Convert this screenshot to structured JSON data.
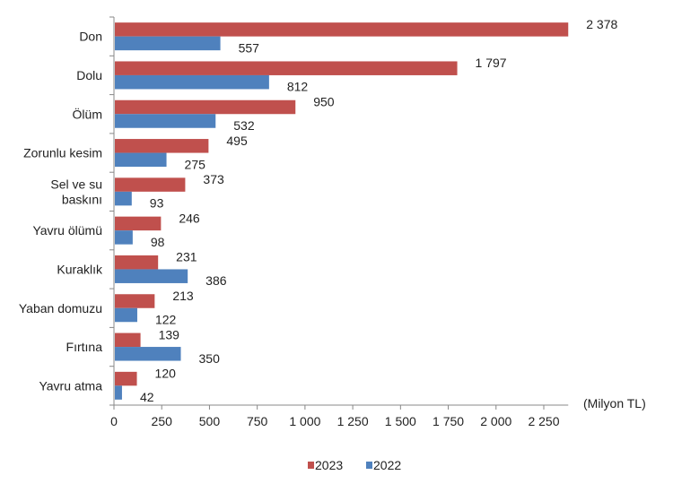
{
  "chart_data": {
    "type": "bar",
    "orientation": "horizontal",
    "categories": [
      "Don",
      "Dolu",
      "Ölüm",
      "Zorunlu kesim",
      "Sel ve su baskını",
      "Yavru ölümü",
      "Kuraklık",
      "Yaban domuzu",
      "Fırtına",
      "Yavru atma"
    ],
    "category_lines": [
      [
        "Don"
      ],
      [
        "Dolu"
      ],
      [
        "Ölüm"
      ],
      [
        "Zorunlu kesim"
      ],
      [
        "Sel ve su",
        "baskını"
      ],
      [
        "Yavru ölümü"
      ],
      [
        "Kuraklık"
      ],
      [
        "Yaban domuzu"
      ],
      [
        "Fırtına"
      ],
      [
        "Yavru atma"
      ]
    ],
    "series": [
      {
        "name": "2023",
        "color": "#c0504d",
        "values": [
          2378,
          1797,
          950,
          495,
          373,
          246,
          231,
          213,
          139,
          120
        ],
        "labels": [
          "2 378",
          "1 797",
          "950",
          "495",
          "373",
          "246",
          "231",
          "213",
          "139",
          "120"
        ]
      },
      {
        "name": "2022",
        "color": "#4f81bd",
        "values": [
          557,
          812,
          532,
          275,
          93,
          98,
          386,
          122,
          350,
          42
        ],
        "labels": [
          "557",
          "812",
          "532",
          "275",
          "93",
          "98",
          "386",
          "122",
          "350",
          "42"
        ]
      }
    ],
    "xticks": [
      0,
      250,
      500,
      750,
      1000,
      1250,
      1500,
      1750,
      2000,
      2250
    ],
    "xtick_labels": [
      "0",
      "250",
      "500",
      "750",
      "1 000",
      "1 250",
      "1 500",
      "1 750",
      "2 000",
      "2 250"
    ],
    "xlim": [
      0,
      2378
    ],
    "unit_label": "(Milyon TL)",
    "title": "",
    "xlabel": "",
    "ylabel": "",
    "grid": false,
    "legend_position": "bottom-center"
  }
}
